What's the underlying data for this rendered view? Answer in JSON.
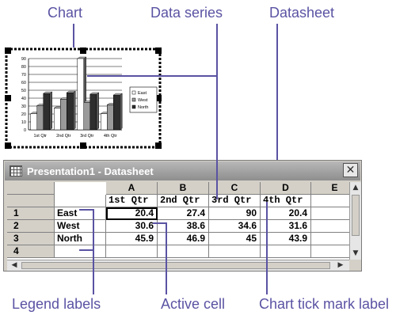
{
  "callouts": {
    "chart": "Chart",
    "data_series": "Data series",
    "datasheet": "Datasheet",
    "legend_labels": "Legend labels",
    "active_cell": "Active cell",
    "chart_tick_mark_label": "Chart tick mark label"
  },
  "window": {
    "title": "Presentation1 - Datasheet",
    "close_glyph": "✕"
  },
  "datasheet": {
    "columns": [
      "A",
      "B",
      "C",
      "D",
      "E"
    ],
    "row_labels": [
      "1",
      "2",
      "3",
      "4"
    ],
    "header_row": [
      "1st Qtr",
      "2nd Qtr",
      "3rd Qtr",
      "4th Qtr"
    ],
    "rows": [
      {
        "name": "East",
        "values": [
          "20.4",
          "27.4",
          "90",
          "20.4"
        ]
      },
      {
        "name": "West",
        "values": [
          "30.6",
          "38.6",
          "34.6",
          "31.6"
        ]
      },
      {
        "name": "North",
        "values": [
          "45.9",
          "46.9",
          "45",
          "43.9"
        ]
      }
    ],
    "active_cell": "A1"
  },
  "chart_data": {
    "type": "bar",
    "categories": [
      "1st Qtr",
      "2nd Qtr",
      "3rd Qtr",
      "4th Qtr"
    ],
    "series": [
      {
        "name": "East",
        "values": [
          20.4,
          27.4,
          90,
          20.4
        ],
        "color": "#ffffff"
      },
      {
        "name": "West",
        "values": [
          30.6,
          38.6,
          34.6,
          31.6
        ],
        "color": "#9a9a9a"
      },
      {
        "name": "North",
        "values": [
          45.9,
          46.9,
          45,
          43.9
        ],
        "color": "#2e2e2e"
      }
    ],
    "y_ticks": [
      "0",
      "10",
      "20",
      "30",
      "40",
      "50",
      "60",
      "70",
      "80",
      "90"
    ],
    "ylim": [
      0,
      90
    ],
    "grid": true,
    "legend_position": "right"
  },
  "colors": {
    "callout_text": "#5a53a3",
    "leader_line": "#5a53a3"
  },
  "icons": [
    "datasheet-icon",
    "close-icon",
    "row-chart-icon",
    "scroll-arrow-icon"
  ]
}
